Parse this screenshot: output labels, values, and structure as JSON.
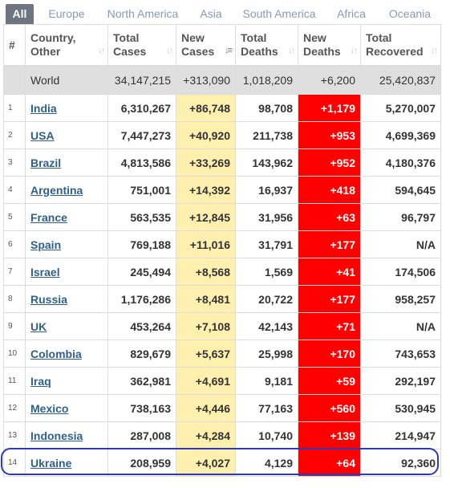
{
  "tabs": [
    "All",
    "Europe",
    "North America",
    "Asia",
    "South America",
    "Africa",
    "Oceania"
  ],
  "active_tab": "All",
  "headers": {
    "num": "#",
    "country": [
      "Country,",
      "Other"
    ],
    "total_cases": [
      "Total",
      "Cases"
    ],
    "new_cases": [
      "New",
      "Cases"
    ],
    "total_deaths": [
      "Total",
      "Deaths"
    ],
    "new_deaths": [
      "New",
      "Deaths"
    ],
    "total_recovered": [
      "Total",
      "Recovered"
    ]
  },
  "world": {
    "country": "World",
    "total_cases": "34,147,215",
    "new_cases": "+313,090",
    "total_deaths": "1,018,209",
    "new_deaths": "+6,200",
    "total_recovered": "25,420,837"
  },
  "rows": [
    {
      "num": "1",
      "country": "India",
      "total_cases": "6,310,267",
      "new_cases": "+86,748",
      "total_deaths": "98,708",
      "new_deaths": "+1,179",
      "total_recovered": "5,270,007"
    },
    {
      "num": "2",
      "country": "USA",
      "total_cases": "7,447,273",
      "new_cases": "+40,920",
      "total_deaths": "211,738",
      "new_deaths": "+953",
      "total_recovered": "4,699,369"
    },
    {
      "num": "3",
      "country": "Brazil",
      "total_cases": "4,813,586",
      "new_cases": "+33,269",
      "total_deaths": "143,962",
      "new_deaths": "+952",
      "total_recovered": "4,180,376"
    },
    {
      "num": "4",
      "country": "Argentina",
      "total_cases": "751,001",
      "new_cases": "+14,392",
      "total_deaths": "16,937",
      "new_deaths": "+418",
      "total_recovered": "594,645"
    },
    {
      "num": "5",
      "country": "France",
      "total_cases": "563,535",
      "new_cases": "+12,845",
      "total_deaths": "31,956",
      "new_deaths": "+63",
      "total_recovered": "96,797"
    },
    {
      "num": "6",
      "country": "Spain",
      "total_cases": "769,188",
      "new_cases": "+11,016",
      "total_deaths": "31,791",
      "new_deaths": "+177",
      "total_recovered": "N/A"
    },
    {
      "num": "7",
      "country": "Israel",
      "total_cases": "245,494",
      "new_cases": "+8,568",
      "total_deaths": "1,569",
      "new_deaths": "+41",
      "total_recovered": "174,506"
    },
    {
      "num": "8",
      "country": "Russia",
      "total_cases": "1,176,286",
      "new_cases": "+8,481",
      "total_deaths": "20,722",
      "new_deaths": "+177",
      "total_recovered": "958,257"
    },
    {
      "num": "9",
      "country": "UK",
      "total_cases": "453,264",
      "new_cases": "+7,108",
      "total_deaths": "42,143",
      "new_deaths": "+71",
      "total_recovered": "N/A"
    },
    {
      "num": "10",
      "country": "Colombia",
      "total_cases": "829,679",
      "new_cases": "+5,637",
      "total_deaths": "25,998",
      "new_deaths": "+170",
      "total_recovered": "743,653"
    },
    {
      "num": "11",
      "country": "Iraq",
      "total_cases": "362,981",
      "new_cases": "+4,691",
      "total_deaths": "9,181",
      "new_deaths": "+59",
      "total_recovered": "292,197"
    },
    {
      "num": "12",
      "country": "Mexico",
      "total_cases": "738,163",
      "new_cases": "+4,446",
      "total_deaths": "77,163",
      "new_deaths": "+560",
      "total_recovered": "530,945"
    },
    {
      "num": "13",
      "country": "Indonesia",
      "total_cases": "287,008",
      "new_cases": "+4,284",
      "total_deaths": "10,740",
      "new_deaths": "+139",
      "total_recovered": "214,947"
    },
    {
      "num": "14",
      "country": "Ukraine",
      "total_cases": "208,959",
      "new_cases": "+4,027",
      "total_deaths": "4,129",
      "new_deaths": "+64",
      "total_recovered": "92,360"
    }
  ],
  "colors": {
    "new_cases_bg": "#fff0b0",
    "new_deaths_bg": "#ff0000",
    "highlight_outline": "#2e38b8",
    "link": "#2f5f8f"
  },
  "icons": {
    "sort": "sort-arrows-icon",
    "sort_active": "sort-desc-active-icon"
  }
}
